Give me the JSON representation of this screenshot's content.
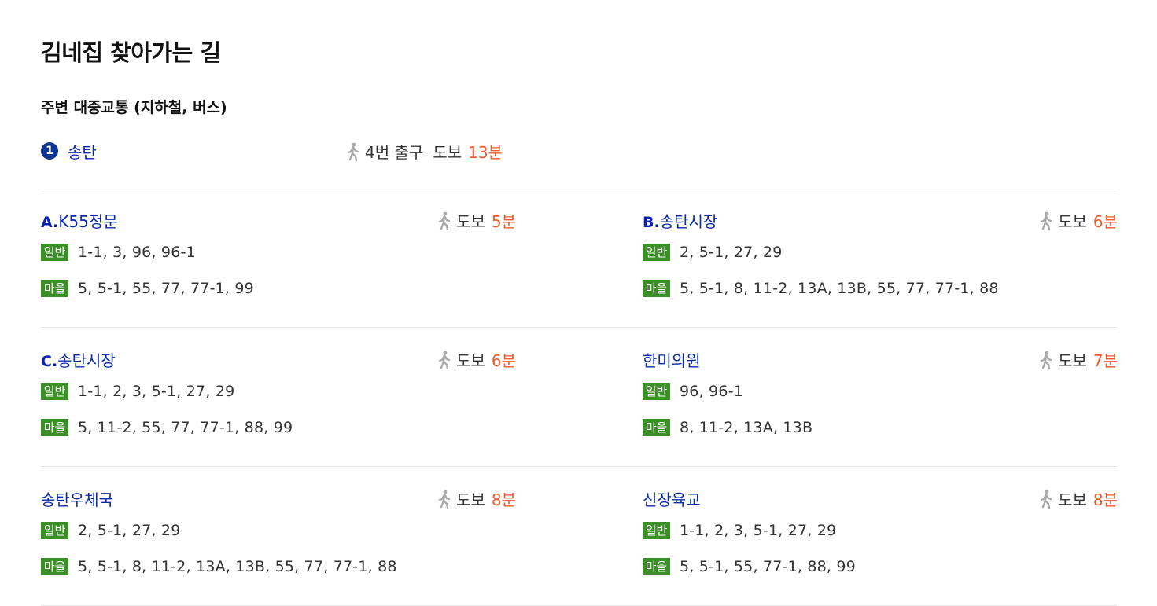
{
  "title": "김네집 찾아가는 길",
  "subtitle": "주변 대중교통 (지하철, 버스)",
  "subway": {
    "line_badge": "1",
    "line_color": "#0d3692",
    "station": "송탄",
    "exit": "4번 출구",
    "walk_label": "도보",
    "walk_time": "13분"
  },
  "bus_type_labels": {
    "general": "일반",
    "village": "마을"
  },
  "colors": {
    "accent_orange": "#ee5a2d",
    "link_blue": "#0a2aa8",
    "bus_green": "#3b8f27"
  },
  "stops": [
    {
      "prefix": "A.",
      "name": "K55정문",
      "walk_label": "도보",
      "walk_time": "5분",
      "general": "1-1,  3,  96,  96-1",
      "village": "5,  5-1,  55,  77,  77-1,  99"
    },
    {
      "prefix": "B.",
      "name": "송탄시장",
      "walk_label": "도보",
      "walk_time": "6분",
      "general": "2,  5-1,  27,  29",
      "village": "5,  5-1,  8,  11-2,  13A,  13B,  55,  77,  77-1,  88"
    },
    {
      "prefix": "C.",
      "name": "송탄시장",
      "walk_label": "도보",
      "walk_time": "6분",
      "general": "1-1,  2,  3,  5-1,  27,  29",
      "village": "5,  11-2,  55,  77,  77-1,  88,  99"
    },
    {
      "prefix": "",
      "name": "한미의원",
      "walk_label": "도보",
      "walk_time": "7분",
      "general": "96,  96-1",
      "village": "8,  11-2,  13A,  13B"
    },
    {
      "prefix": "",
      "name": "송탄우체국",
      "walk_label": "도보",
      "walk_time": "8분",
      "general": "2,  5-1,  27,  29",
      "village": "5,  5-1,  8,  11-2,  13A,  13B,  55,  77,  77-1,  88"
    },
    {
      "prefix": "",
      "name": "신장육교",
      "walk_label": "도보",
      "walk_time": "8분",
      "general": "1-1,  2,  3,  5-1,  27,  29",
      "village": "5,  5-1,  55,  77-1,  88,  99"
    }
  ]
}
